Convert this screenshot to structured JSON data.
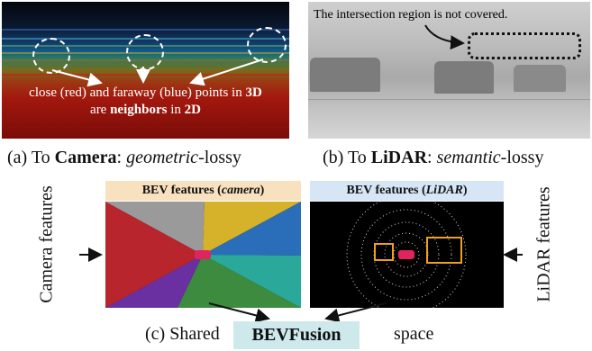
{
  "panel_a": {
    "caption_line1_pre": "close (red) and faraway (blue) points in ",
    "caption_line1_bold": "3D",
    "caption_line2_pre": "are ",
    "caption_line2_bold": "neighbors",
    "caption_line2_mid": " in ",
    "caption_line2_bold2": "2D",
    "label_prefix": "(a) To ",
    "label_bold": "Camera",
    "label_sep": ": ",
    "label_italic": "geometric",
    "label_suffix": "-lossy"
  },
  "panel_b": {
    "note": "The intersection region is not covered.",
    "label_prefix": "(b) To ",
    "label_bold": "LiDAR",
    "label_sep": ": ",
    "label_italic": "semantic",
    "label_suffix": "-lossy"
  },
  "panel_c": {
    "bev_camera_pre": "BEV features (",
    "bev_camera_italic": "camera",
    "bev_camera_post": ")",
    "bev_lidar_pre": "BEV features (",
    "bev_lidar_italic": "LiDAR",
    "bev_lidar_post": ")",
    "camera_features": "Camera  features",
    "lidar_features": "LiDAR features",
    "caption_pre": "(c) Shared",
    "fusion_name": "BEVFusion",
    "caption_post": "space"
  },
  "colors": {
    "camera_label_bg": "#f7e1bf",
    "lidar_label_bg": "#d6e6f6",
    "fusion_bg": "#cde9ec",
    "ego_car": "#e0245e",
    "box_orange": "#f0a020"
  }
}
